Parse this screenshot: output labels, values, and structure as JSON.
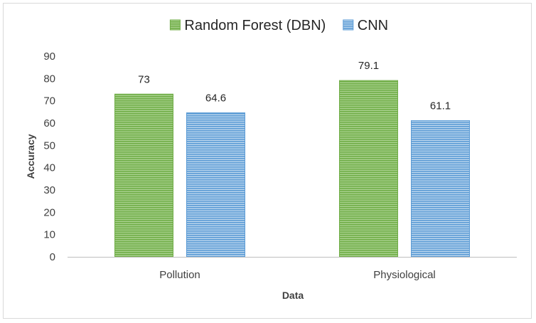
{
  "chart_data": {
    "type": "bar",
    "categories": [
      "Pollution",
      "Physiological"
    ],
    "series": [
      {
        "name": "Random Forest (DBN)",
        "values": [
          73,
          79.1
        ],
        "color": "#70ad47",
        "stripe": "#a9d18e"
      },
      {
        "name": "CNN",
        "values": [
          64.6,
          61.1
        ],
        "color": "#5b9bd5",
        "stripe": "#bdd7ee"
      }
    ],
    "data_labels": [
      [
        "73",
        "79.1"
      ],
      [
        "64.6",
        "61.1"
      ]
    ],
    "xlabel": "Data",
    "ylabel": "Accuracy",
    "ylim": [
      0,
      90
    ],
    "yticks": [
      "0",
      "10",
      "20",
      "30",
      "40",
      "50",
      "60",
      "70",
      "80",
      "90"
    ],
    "legend_position": "top",
    "grid": false,
    "pattern": "horizontal-stripes"
  }
}
